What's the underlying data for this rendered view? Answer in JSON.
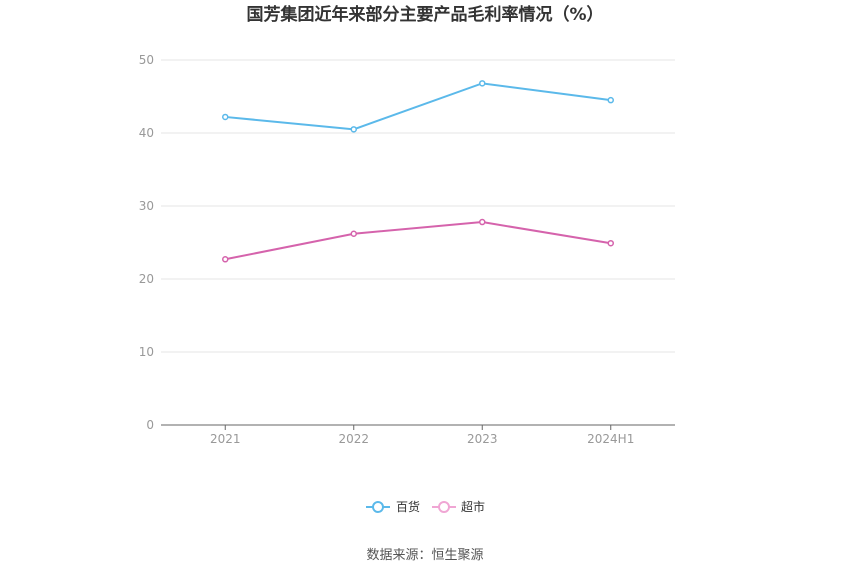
{
  "chart_data": {
    "type": "line",
    "title": "国芳集团近年来部分主要产品毛利率情况（%）",
    "categories": [
      "2021",
      "2022",
      "2023",
      "2024H1"
    ],
    "ylim": [
      0,
      50
    ],
    "yticks": [
      "0",
      "10",
      "20",
      "30",
      "40",
      "50"
    ],
    "grid": true,
    "legend_position": "bottom",
    "series": [
      {
        "name": "百货",
        "color": "#5bb9ea",
        "values": [
          42.2,
          40.5,
          46.8,
          44.5
        ]
      },
      {
        "name": "超市",
        "color": "#d563ac",
        "values": [
          22.7,
          26.2,
          27.8,
          24.9
        ]
      }
    ],
    "source": "数据来源：恒生聚源"
  }
}
